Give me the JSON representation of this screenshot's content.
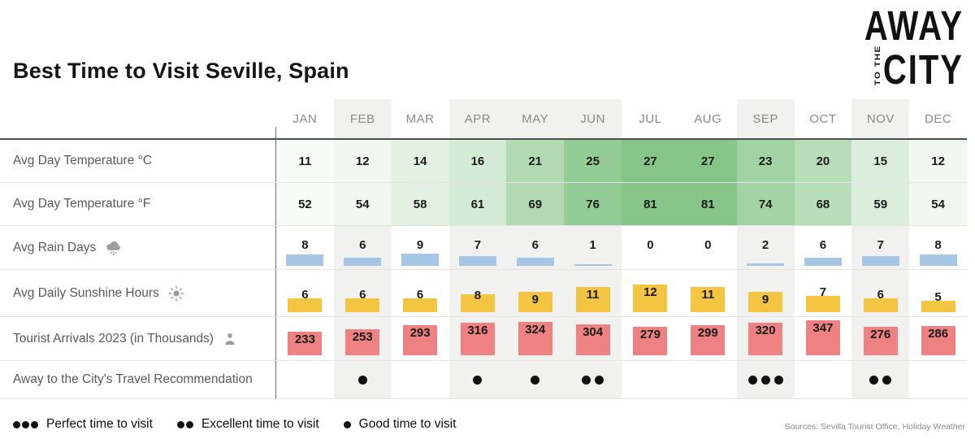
{
  "title": "Best Time to Visit Seville, Spain",
  "logo": {
    "line1": "AWAY",
    "line2_small": "TO THE",
    "line2_big": "CITY"
  },
  "chart_data": {
    "type": "table",
    "title": "Best Time to Visit Seville, Spain",
    "categories": [
      "JAN",
      "FEB",
      "MAR",
      "APR",
      "MAY",
      "JUN",
      "JUL",
      "AUG",
      "SEP",
      "OCT",
      "NOV",
      "DEC"
    ],
    "series": [
      {
        "name": "Avg Day Temperature °C",
        "values": [
          11,
          12,
          14,
          16,
          21,
          25,
          27,
          27,
          23,
          20,
          15,
          12
        ]
      },
      {
        "name": "Avg Day Temperature °F",
        "values": [
          52,
          54,
          58,
          61,
          69,
          76,
          81,
          81,
          74,
          68,
          59,
          54
        ]
      },
      {
        "name": "Avg Rain Days",
        "values": [
          8,
          6,
          9,
          7,
          6,
          1,
          0,
          0,
          2,
          6,
          7,
          8
        ]
      },
      {
        "name": "Avg Daily Sunshine Hours",
        "values": [
          6,
          6,
          6,
          8,
          9,
          11,
          12,
          11,
          9,
          7,
          6,
          5
        ]
      },
      {
        "name": "Tourist Arrivals 2023 (in Thousands)",
        "values": [
          233,
          253,
          293,
          316,
          324,
          304,
          279,
          299,
          320,
          347,
          276,
          286
        ]
      },
      {
        "name": "Away to the City's Travel Recommendation",
        "values": [
          0,
          1,
          0,
          1,
          1,
          2,
          0,
          0,
          3,
          0,
          2,
          0
        ]
      }
    ],
    "highlighted_months": [
      "FEB",
      "APR",
      "MAY",
      "JUN",
      "SEP",
      "NOV"
    ],
    "temp_color_scale": {
      "min_temp_c": 10,
      "max_temp_c": 27,
      "min_color": "#ffffff",
      "max_color": "#86c588"
    }
  },
  "icons": {
    "rain_days": "rain-cloud-icon",
    "sunshine": "sun-icon",
    "tourist": "person-icon"
  },
  "legend": {
    "items": [
      {
        "dots": 3,
        "label": "Perfect time to visit"
      },
      {
        "dots": 2,
        "label": "Excellent time to visit"
      },
      {
        "dots": 1,
        "label": "Good time to visit"
      }
    ]
  },
  "sources": "Sources: Sevilla Tourist Office, Holiday Weather",
  "colors": {
    "rain_bar": "#a5c6e5",
    "sun_box": "#f4c542",
    "tourist_box": "#ee8181",
    "highlight_column": "#f1f1f0",
    "recommendation_dot": "#111111",
    "temp_green_max": "#86c588"
  }
}
